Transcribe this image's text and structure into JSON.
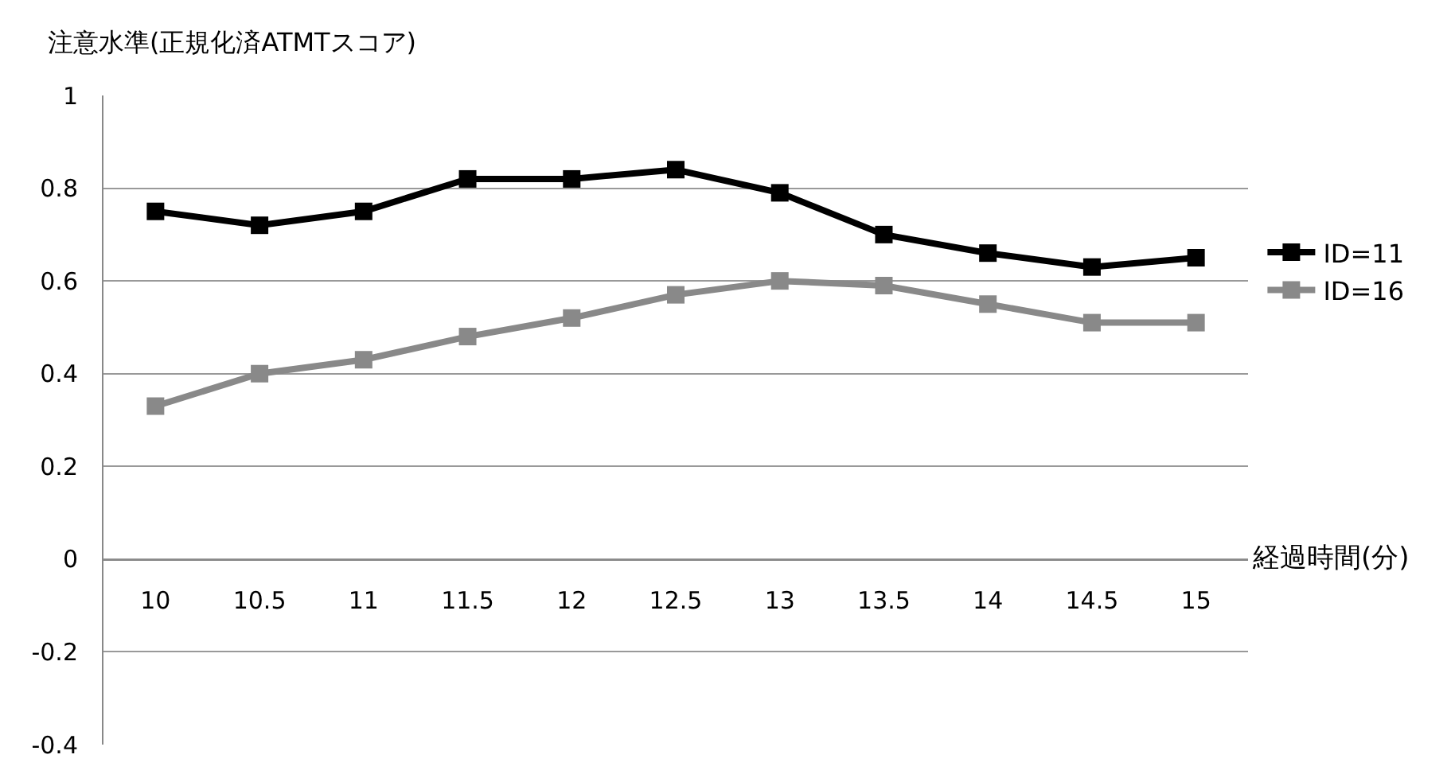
{
  "chart_data": {
    "type": "line",
    "xlabel": "経過時間(分)",
    "ylabel": "注意水準(正規化済ATMTスコア)",
    "categories": [
      "10",
      "10.5",
      "11",
      "11.5",
      "12",
      "12.5",
      "13",
      "13.5",
      "14",
      "14.5",
      "15"
    ],
    "series": [
      {
        "name": "ID=11",
        "color": "#000000",
        "values": [
          0.75,
          0.72,
          0.75,
          0.82,
          0.82,
          0.84,
          0.79,
          0.7,
          0.66,
          0.63,
          0.65
        ]
      },
      {
        "name": "ID=16",
        "color": "#898989",
        "values": [
          0.33,
          0.4,
          0.43,
          0.48,
          0.52,
          0.57,
          0.6,
          0.59,
          0.55,
          0.51,
          0.51
        ]
      }
    ],
    "ylim": [
      -0.4,
      1
    ],
    "yticks": [
      -0.4,
      -0.2,
      0,
      0.2,
      0.4,
      0.6,
      0.8,
      1
    ],
    "grid": "y",
    "legend": "right",
    "marker": "square",
    "line_style": "solid"
  }
}
